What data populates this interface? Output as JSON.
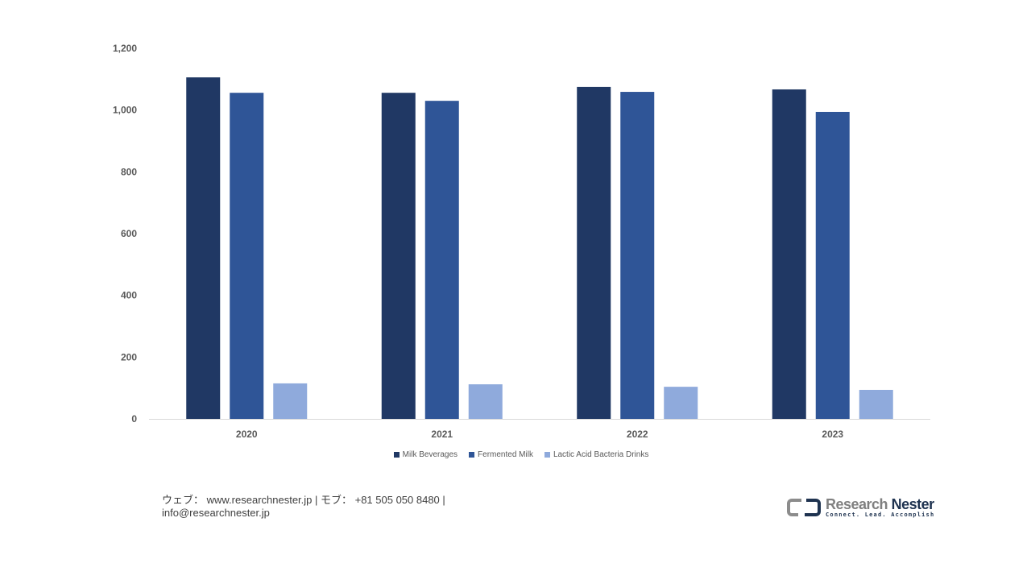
{
  "chart_data": {
    "type": "bar",
    "categories": [
      "2020",
      "2021",
      "2022",
      "2023"
    ],
    "series": [
      {
        "name": "Milk Beverages",
        "color": "#203864",
        "values": [
          1106,
          1056,
          1075,
          1067
        ]
      },
      {
        "name": "Fermented Milk",
        "color": "#2f5597",
        "values": [
          1056,
          1030,
          1059,
          994
        ]
      },
      {
        "name": "Lactic Acid Bacteria Drinks",
        "color": "#8faadc",
        "values": [
          115,
          112,
          104,
          94
        ]
      }
    ],
    "ylim": [
      0,
      1200
    ],
    "yticks": [
      "0",
      "200",
      "400",
      "600",
      "800",
      "1,000",
      "1,200"
    ],
    "ytick_values": [
      0,
      200,
      400,
      600,
      800,
      1000,
      1200
    ],
    "grid": false,
    "legend_position": "bottom"
  },
  "footer": {
    "line1": "ウェブ： www.researchnester.jp | モブ： +81 505 050 8480 |",
    "line2": "info@researchnester.jp"
  },
  "logo": {
    "name_part1": "Research",
    "name_part2": "Nester",
    "tagline": "Connect. Lead. Accomplish"
  }
}
